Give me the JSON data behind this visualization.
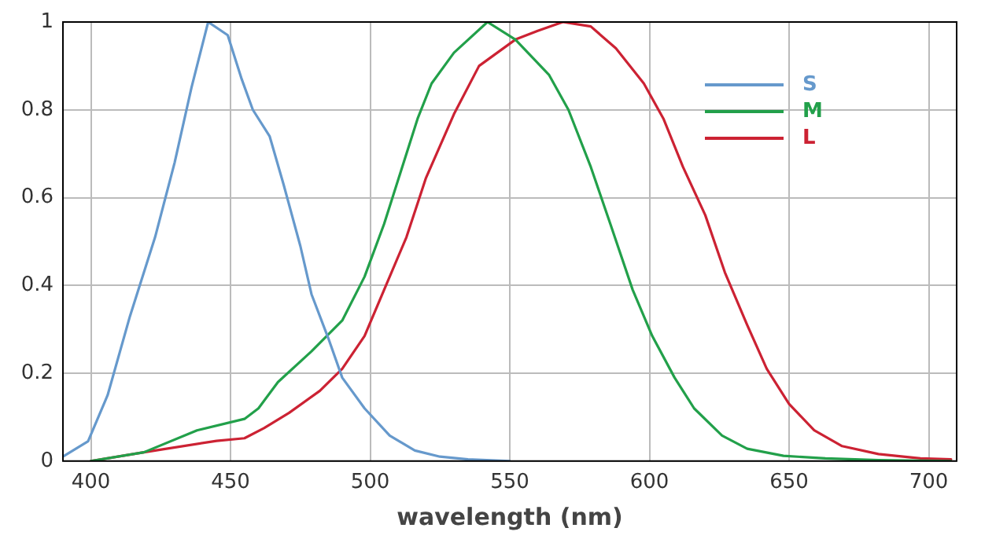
{
  "chart_data": {
    "type": "line",
    "xlabel": "wavelength (nm)",
    "xlim": [
      390,
      710
    ],
    "xticks": [
      400,
      450,
      500,
      550,
      600,
      650,
      700
    ],
    "ylim": [
      0,
      1
    ],
    "yticks": [
      0,
      0.2,
      0.4,
      0.6,
      0.8,
      1
    ],
    "grid": true,
    "legend": "top right",
    "marker": "none",
    "line_style": "solid",
    "series": [
      {
        "name": "S",
        "color": "#6699cc",
        "x": [
          390,
          399,
          406,
          414,
          423,
          430,
          436,
          442,
          449,
          454,
          458,
          464,
          469,
          475,
          479,
          485,
          490,
          498,
          507,
          516,
          525,
          535,
          550
        ],
        "values": [
          0.01,
          0.045,
          0.15,
          0.33,
          0.51,
          0.68,
          0.85,
          1.0,
          0.97,
          0.87,
          0.8,
          0.74,
          0.63,
          0.49,
          0.38,
          0.28,
          0.19,
          0.12,
          0.058,
          0.024,
          0.01,
          0.004,
          0
        ]
      },
      {
        "name": "M",
        "color": "#22a04a",
        "x": [
          400,
          419,
          438,
          455,
          460,
          467,
          479,
          490,
          498,
          505,
          511,
          517,
          522,
          530,
          542,
          552,
          564,
          571,
          579,
          586,
          594,
          601,
          609,
          616,
          626,
          635,
          648,
          663,
          682,
          708
        ],
        "values": [
          0,
          0.02,
          0.07,
          0.096,
          0.12,
          0.18,
          0.25,
          0.32,
          0.42,
          0.54,
          0.66,
          0.78,
          0.86,
          0.93,
          1.0,
          0.96,
          0.88,
          0.8,
          0.67,
          0.54,
          0.39,
          0.285,
          0.19,
          0.12,
          0.058,
          0.028,
          0.012,
          0.006,
          0.002,
          0
        ]
      },
      {
        "name": "L",
        "color": "#cc2233",
        "x": [
          400,
          419,
          445,
          455,
          462,
          471,
          482,
          490,
          498,
          505,
          513,
          520,
          530,
          539,
          552,
          560,
          569,
          579,
          588,
          598,
          605,
          612,
          620,
          627,
          635,
          642,
          650,
          659,
          669,
          682,
          697,
          708
        ],
        "values": [
          0,
          0.02,
          0.046,
          0.052,
          0.075,
          0.11,
          0.16,
          0.21,
          0.285,
          0.39,
          0.51,
          0.645,
          0.79,
          0.9,
          0.96,
          0.98,
          1.0,
          0.99,
          0.94,
          0.86,
          0.78,
          0.67,
          0.56,
          0.43,
          0.31,
          0.21,
          0.13,
          0.07,
          0.034,
          0.016,
          0.006,
          0.004
        ]
      }
    ]
  }
}
